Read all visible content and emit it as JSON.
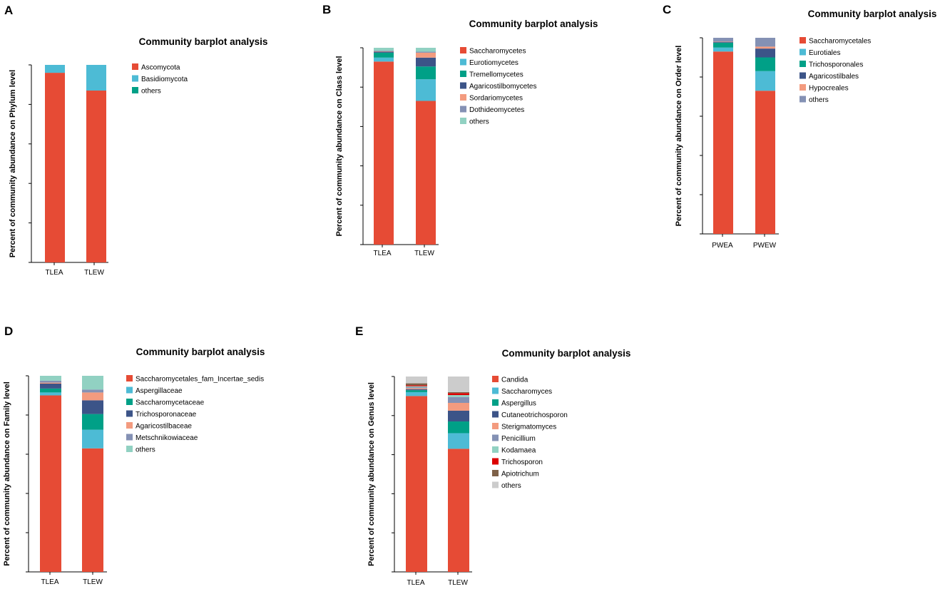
{
  "chart_data": [
    {
      "type": "bar",
      "stacked": true,
      "panel_label": "A",
      "title": "Community barplot analysis",
      "ylabel": "Percent of community abundance on Phylum level",
      "xlabel": "",
      "ylim": [
        0,
        1
      ],
      "categories": [
        "TLEA",
        "TLEW"
      ],
      "series": [
        {
          "name": "Ascomycota",
          "color": "#e64b35",
          "values": [
            0.96,
            0.87
          ]
        },
        {
          "name": "Basidiomycota",
          "color": "#4dbbd5",
          "values": [
            0.04,
            0.13
          ]
        },
        {
          "name": "others",
          "color": "#00a087",
          "values": [
            0.0,
            0.0
          ]
        }
      ]
    },
    {
      "type": "bar",
      "stacked": true,
      "panel_label": "B",
      "title": "Community barplot analysis",
      "ylabel": "Percent of community abundance on Class level",
      "xlabel": "",
      "ylim": [
        0,
        1
      ],
      "categories": [
        "TLEA",
        "TLEW"
      ],
      "series": [
        {
          "name": "Saccharomycetes",
          "color": "#e64b35",
          "values": [
            0.93,
            0.73
          ]
        },
        {
          "name": "Eurotiomycetes",
          "color": "#4dbbd5",
          "values": [
            0.02,
            0.11
          ]
        },
        {
          "name": "Tremellomycetes",
          "color": "#00a087",
          "values": [
            0.025,
            0.065
          ]
        },
        {
          "name": "Agaricostilbomycetes",
          "color": "#3c5488",
          "values": [
            0.005,
            0.045
          ]
        },
        {
          "name": "Sordariomycetes",
          "color": "#f39b7f",
          "values": [
            0.002,
            0.025
          ]
        },
        {
          "name": "Dothideomycetes",
          "color": "#8491b4",
          "values": [
            0.003,
            0.005
          ]
        },
        {
          "name": "others",
          "color": "#91d1c2",
          "values": [
            0.015,
            0.02
          ]
        }
      ]
    },
    {
      "type": "bar",
      "stacked": true,
      "panel_label": "C",
      "title": "Community barplot analysis",
      "ylabel": "Percent of community abundance on Order level",
      "xlabel": "",
      "ylim": [
        0,
        1
      ],
      "categories": [
        "PWEA",
        "PWEW"
      ],
      "series": [
        {
          "name": "Saccharomycetales",
          "color": "#e64b35",
          "values": [
            0.93,
            0.73
          ]
        },
        {
          "name": "Eurotiales",
          "color": "#4dbbd5",
          "values": [
            0.02,
            0.1
          ]
        },
        {
          "name": "Trichosporonales",
          "color": "#00a087",
          "values": [
            0.025,
            0.07
          ]
        },
        {
          "name": "Agaricostilbales",
          "color": "#3c5488",
          "values": [
            0.003,
            0.045
          ]
        },
        {
          "name": "Hypocreales",
          "color": "#f39b7f",
          "values": [
            0.002,
            0.01
          ]
        },
        {
          "name": "others",
          "color": "#8491b4",
          "values": [
            0.02,
            0.045
          ]
        }
      ]
    },
    {
      "type": "bar",
      "stacked": true,
      "panel_label": "D",
      "title": "Community barplot analysis",
      "ylabel": "Percent of community abundance on Family level",
      "xlabel": "",
      "ylim": [
        0,
        1
      ],
      "categories": [
        "TLEA",
        "TLEW"
      ],
      "series": [
        {
          "name": "Saccharomycetales_fam_Incertae_sedis",
          "color": "#e64b35",
          "values": [
            0.9,
            0.63
          ]
        },
        {
          "name": "Aspergillaceae",
          "color": "#4dbbd5",
          "values": [
            0.015,
            0.095
          ]
        },
        {
          "name": "Saccharomycetaceae",
          "color": "#00a087",
          "values": [
            0.02,
            0.08
          ]
        },
        {
          "name": "Trichosporonaceae",
          "color": "#3c5488",
          "values": [
            0.025,
            0.07
          ]
        },
        {
          "name": "Agaricostilbaceae",
          "color": "#f39b7f",
          "values": [
            0.005,
            0.04
          ]
        },
        {
          "name": "Metschnikowiaceae",
          "color": "#8491b4",
          "values": [
            0.01,
            0.015
          ]
        },
        {
          "name": "others",
          "color": "#91d1c2",
          "values": [
            0.025,
            0.07
          ]
        }
      ]
    },
    {
      "type": "bar",
      "stacked": true,
      "panel_label": "E",
      "title": "Community barplot analysis",
      "ylabel": "Percent of community abundance on Genus level",
      "xlabel": "",
      "ylim": [
        0,
        1
      ],
      "categories": [
        "TLEA",
        "TLEW"
      ],
      "series": [
        {
          "name": "Candida",
          "color": "#e64b35",
          "values": [
            0.9,
            0.63
          ]
        },
        {
          "name": "Saccharomyces",
          "color": "#4dbbd5",
          "values": [
            0.02,
            0.08
          ]
        },
        {
          "name": "Aspergillus",
          "color": "#00a087",
          "values": [
            0.01,
            0.06
          ]
        },
        {
          "name": "Cutaneotrichosporon",
          "color": "#3c5488",
          "values": [
            0.005,
            0.055
          ]
        },
        {
          "name": "Sterigmatomyces",
          "color": "#f39b7f",
          "values": [
            0.005,
            0.04
          ]
        },
        {
          "name": "Penicillium",
          "color": "#8491b4",
          "values": [
            0.005,
            0.03
          ]
        },
        {
          "name": "Kodamaea",
          "color": "#91d1c2",
          "values": [
            0.005,
            0.01
          ]
        },
        {
          "name": "Trichosporon",
          "color": "#dc0000",
          "values": [
            0.005,
            0.01
          ]
        },
        {
          "name": "Apiotrichum",
          "color": "#7e6148",
          "values": [
            0.01,
            0.005
          ]
        },
        {
          "name": "others",
          "color": "#cccccc",
          "values": [
            0.035,
            0.08
          ]
        }
      ]
    }
  ]
}
